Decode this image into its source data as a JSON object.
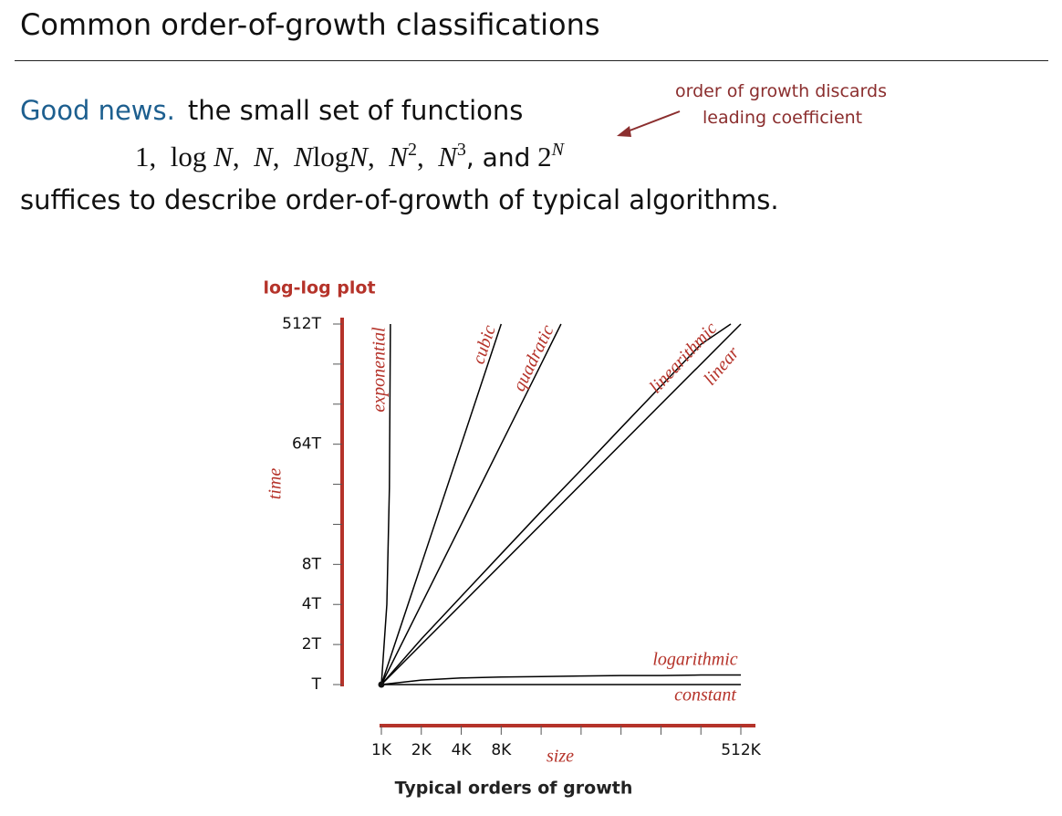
{
  "header": {
    "title": "Common order-of-growth classifications"
  },
  "body": {
    "lead": "Good news.",
    "line1": "the small set of functions",
    "formula": [
      "1,",
      "log",
      "N",
      ",",
      "N",
      ",",
      "N",
      "log",
      "N",
      ",",
      "N",
      "2",
      ",",
      "N",
      "3",
      ", and",
      "2",
      "N"
    ],
    "line3": "suffices to describe order-of-growth of typical algorithms.",
    "annotation": [
      "order of growth discards",
      "leading coefficient"
    ]
  },
  "chart_data": {
    "type": "line",
    "title": "log-log plot",
    "xlabel": "size",
    "ylabel": "time",
    "caption": "Typical orders of growth",
    "xscale": "log2",
    "yscale": "log2",
    "color": "#000000",
    "axis_color": "#b5332a",
    "xlim": [
      1,
      512
    ],
    "ylim": [
      1,
      512
    ],
    "xticks": [
      {
        "value": 1,
        "label": "1K"
      },
      {
        "value": 2,
        "label": "2K"
      },
      {
        "value": 4,
        "label": "4K"
      },
      {
        "value": 8,
        "label": "8K"
      },
      {
        "value": 16,
        "label": null
      },
      {
        "value": 32,
        "label": null
      },
      {
        "value": 64,
        "label": null
      },
      {
        "value": 128,
        "label": null
      },
      {
        "value": 256,
        "label": null
      },
      {
        "value": 512,
        "label": "512K"
      }
    ],
    "yticks": [
      {
        "value": 1,
        "label": "T"
      },
      {
        "value": 2,
        "label": "2T"
      },
      {
        "value": 4,
        "label": "4T"
      },
      {
        "value": 8,
        "label": "8T"
      },
      {
        "value": 16,
        "label": null
      },
      {
        "value": 32,
        "label": null
      },
      {
        "value": 64,
        "label": "64T"
      },
      {
        "value": 128,
        "label": null
      },
      {
        "value": 256,
        "label": null
      },
      {
        "value": 512,
        "label": "512T"
      }
    ],
    "series": [
      {
        "name": "constant",
        "x": [
          1,
          512
        ],
        "values": [
          1,
          1
        ]
      },
      {
        "name": "logarithmic",
        "x": [
          1,
          2,
          4,
          8,
          16,
          32,
          64,
          128,
          256,
          512
        ],
        "values": [
          1,
          1.08,
          1.12,
          1.14,
          1.15,
          1.16,
          1.17,
          1.17,
          1.18,
          1.18
        ]
      },
      {
        "name": "linear",
        "x": [
          1,
          512
        ],
        "values": [
          1,
          512
        ]
      },
      {
        "name": "linearithmic",
        "x": [
          1,
          2,
          4,
          8,
          16,
          32,
          64,
          128,
          256,
          430
        ],
        "values": [
          1,
          2.2,
          4.6,
          9.6,
          20,
          41,
          85,
          175,
          360,
          512
        ]
      },
      {
        "name": "quadratic",
        "x": [
          1,
          2,
          4,
          8,
          16,
          22.6
        ],
        "values": [
          1,
          4,
          16,
          64,
          256,
          512
        ]
      },
      {
        "name": "cubic",
        "x": [
          1,
          2,
          4,
          8
        ],
        "values": [
          1,
          8,
          64,
          512
        ]
      },
      {
        "name": "exponential",
        "x": [
          1,
          1.1,
          1.15,
          1.17
        ],
        "values": [
          1,
          4,
          30,
          512
        ]
      }
    ]
  }
}
